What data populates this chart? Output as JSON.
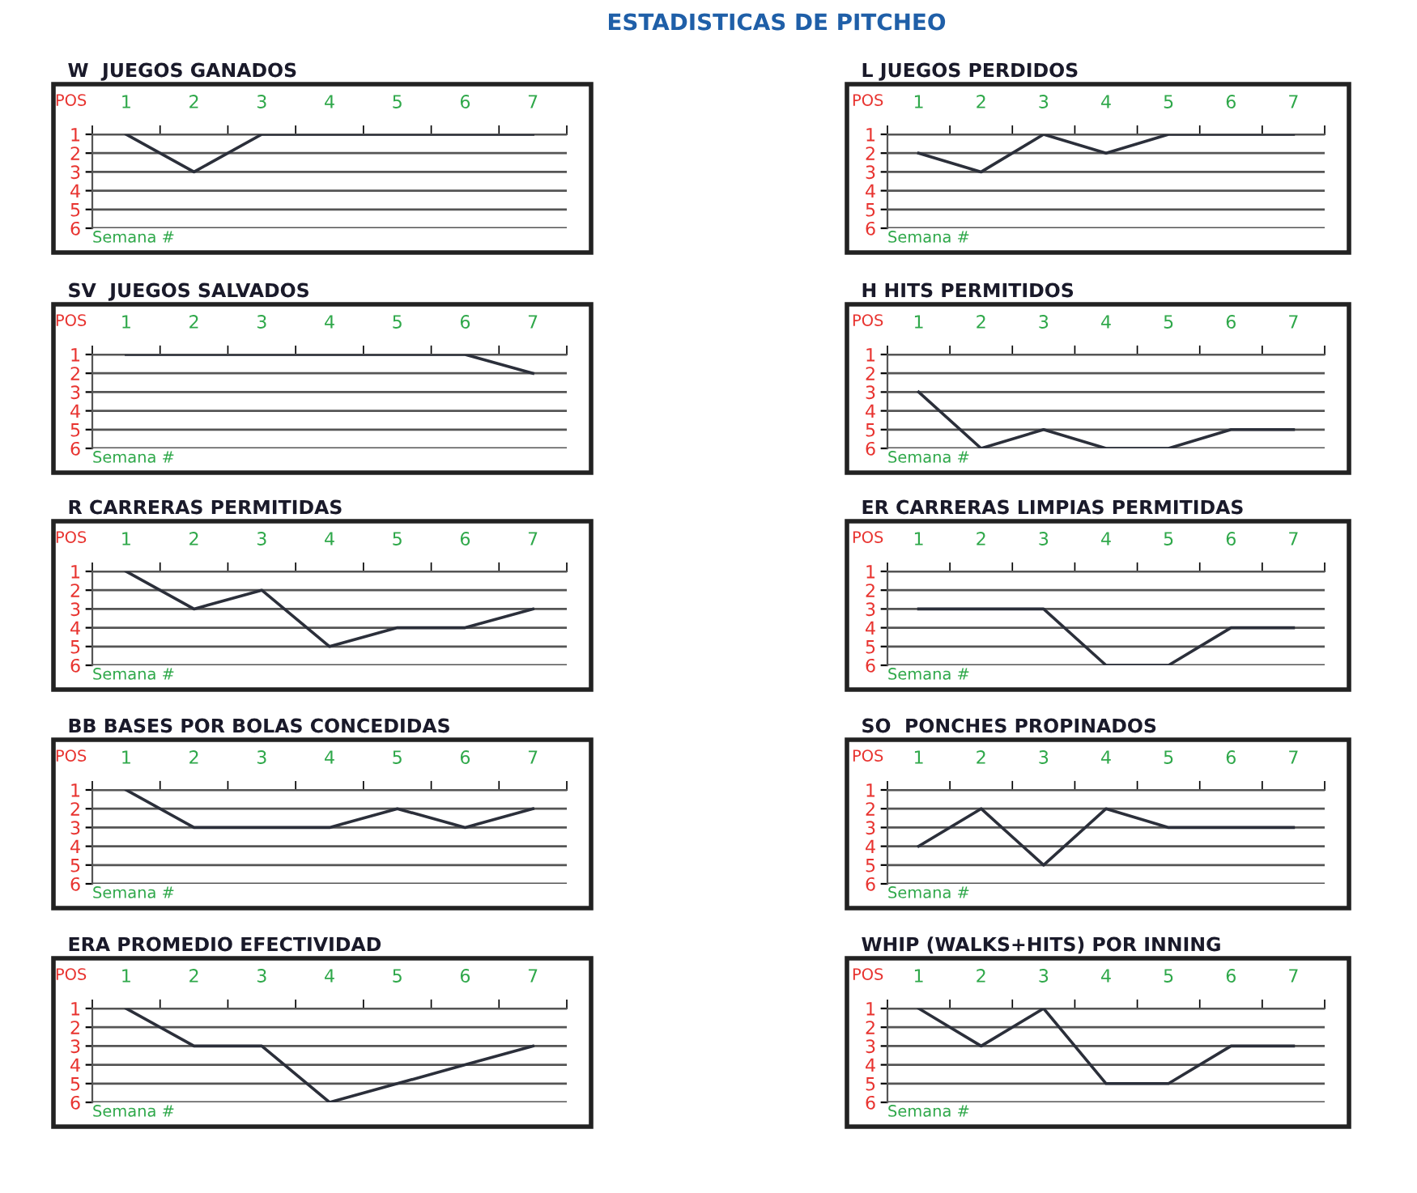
{
  "chart_data": [
    {
      "type": "line",
      "title": "W  JUEGOS GANADOS",
      "annotations": [
        "ESTADISTICAS DE PITCHEO"
      ],
      "xlabel": "Semana #",
      "ylabel": "POS",
      "categories": [
        "1",
        "2",
        "3",
        "4",
        "5",
        "6",
        "7"
      ],
      "series": [
        {
          "color": "#2b2f3a",
          "values": [
            1,
            3,
            1,
            1,
            1,
            1,
            1
          ]
        }
      ],
      "ylim": [
        6,
        1
      ],
      "yticks": [
        1,
        2,
        3,
        4,
        5,
        6
      ],
      "grid": "y",
      "marker": "none",
      "line_style": "solid"
    },
    {
      "type": "line",
      "title": "L JUEGOS PERDIDOS",
      "xlabel": "Semana #",
      "ylabel": "POS",
      "categories": [
        "1",
        "2",
        "3",
        "4",
        "5",
        "6",
        "7"
      ],
      "series": [
        {
          "color": "#2b2f3a",
          "values": [
            2,
            3,
            1,
            2,
            1,
            1,
            1
          ]
        }
      ],
      "ylim": [
        6,
        1
      ],
      "yticks": [
        1,
        2,
        3,
        4,
        5,
        6
      ],
      "grid": "y",
      "marker": "none",
      "line_style": "solid"
    },
    {
      "type": "line",
      "title": "SV  JUEGOS SALVADOS",
      "xlabel": "Semana #",
      "ylabel": "POS",
      "categories": [
        "1",
        "2",
        "3",
        "4",
        "5",
        "6",
        "7"
      ],
      "series": [
        {
          "color": "#2b2f3a",
          "values": [
            1,
            1,
            1,
            1,
            1,
            1,
            2
          ]
        }
      ],
      "ylim": [
        6,
        1
      ],
      "yticks": [
        1,
        2,
        3,
        4,
        5,
        6
      ],
      "grid": "y",
      "marker": "none",
      "line_style": "solid"
    },
    {
      "type": "line",
      "title": "H HITS PERMITIDOS",
      "xlabel": "Semana #",
      "ylabel": "POS",
      "categories": [
        "1",
        "2",
        "3",
        "4",
        "5",
        "6",
        "7"
      ],
      "series": [
        {
          "color": "#2b2f3a",
          "values": [
            3,
            6,
            5,
            6,
            6,
            5,
            5
          ]
        }
      ],
      "ylim": [
        6,
        1
      ],
      "yticks": [
        1,
        2,
        3,
        4,
        5,
        6
      ],
      "grid": "y",
      "marker": "none",
      "line_style": "solid"
    },
    {
      "type": "line",
      "title": "R CARRERAS PERMITIDAS",
      "xlabel": "Semana #",
      "ylabel": "POS",
      "categories": [
        "1",
        "2",
        "3",
        "4",
        "5",
        "6",
        "7"
      ],
      "series": [
        {
          "color": "#2b2f3a",
          "values": [
            1,
            3,
            2,
            5,
            4,
            4,
            3
          ]
        }
      ],
      "ylim": [
        6,
        1
      ],
      "yticks": [
        1,
        2,
        3,
        4,
        5,
        6
      ],
      "grid": "y",
      "marker": "none",
      "line_style": "solid"
    },
    {
      "type": "line",
      "title": "ER CARRERAS LIMPIAS PERMITIDAS",
      "xlabel": "Semana #",
      "ylabel": "POS",
      "categories": [
        "1",
        "2",
        "3",
        "4",
        "5",
        "6",
        "7"
      ],
      "series": [
        {
          "color": "#2b2f3a",
          "values": [
            3,
            3,
            3,
            6,
            6,
            4,
            4
          ]
        }
      ],
      "ylim": [
        6,
        1
      ],
      "yticks": [
        1,
        2,
        3,
        4,
        5,
        6
      ],
      "grid": "y",
      "marker": "none",
      "line_style": "solid"
    },
    {
      "type": "line",
      "title": "BB BASES POR BOLAS CONCEDIDAS",
      "xlabel": "Semana #",
      "ylabel": "POS",
      "categories": [
        "1",
        "2",
        "3",
        "4",
        "5",
        "6",
        "7"
      ],
      "series": [
        {
          "color": "#2b2f3a",
          "values": [
            1,
            3,
            3,
            3,
            2,
            3,
            2
          ]
        }
      ],
      "ylim": [
        6,
        1
      ],
      "yticks": [
        1,
        2,
        3,
        4,
        5,
        6
      ],
      "grid": "y",
      "marker": "none",
      "line_style": "solid"
    },
    {
      "type": "line",
      "title": "SO  PONCHES PROPINADOS",
      "xlabel": "Semana #",
      "ylabel": "POS",
      "categories": [
        "1",
        "2",
        "3",
        "4",
        "5",
        "6",
        "7"
      ],
      "series": [
        {
          "color": "#2b2f3a",
          "values": [
            4,
            2,
            5,
            2,
            3,
            3,
            3
          ]
        }
      ],
      "ylim": [
        6,
        1
      ],
      "yticks": [
        1,
        2,
        3,
        4,
        5,
        6
      ],
      "grid": "y",
      "marker": "none",
      "line_style": "solid"
    },
    {
      "type": "line",
      "title": "ERA PROMEDIO EFECTIVIDAD",
      "xlabel": "Semana #",
      "ylabel": "POS",
      "categories": [
        "1",
        "2",
        "3",
        "4",
        "5",
        "6",
        "7"
      ],
      "series": [
        {
          "color": "#2b2f3a",
          "values": [
            1,
            3,
            3,
            6,
            5,
            4,
            3
          ]
        }
      ],
      "ylim": [
        6,
        1
      ],
      "yticks": [
        1,
        2,
        3,
        4,
        5,
        6
      ],
      "grid": "y",
      "marker": "none",
      "line_style": "solid"
    },
    {
      "type": "line",
      "title": "WHIP (WALKS+HITS) POR INNING",
      "xlabel": "Semana #",
      "ylabel": "POS",
      "categories": [
        "1",
        "2",
        "3",
        "4",
        "5",
        "6",
        "7"
      ],
      "series": [
        {
          "color": "#2b2f3a",
          "values": [
            1,
            3,
            1,
            5,
            5,
            3,
            3
          ]
        }
      ],
      "ylim": [
        6,
        1
      ],
      "yticks": [
        1,
        2,
        3,
        4,
        5,
        6
      ],
      "grid": "y",
      "marker": "none",
      "line_style": "solid"
    }
  ]
}
